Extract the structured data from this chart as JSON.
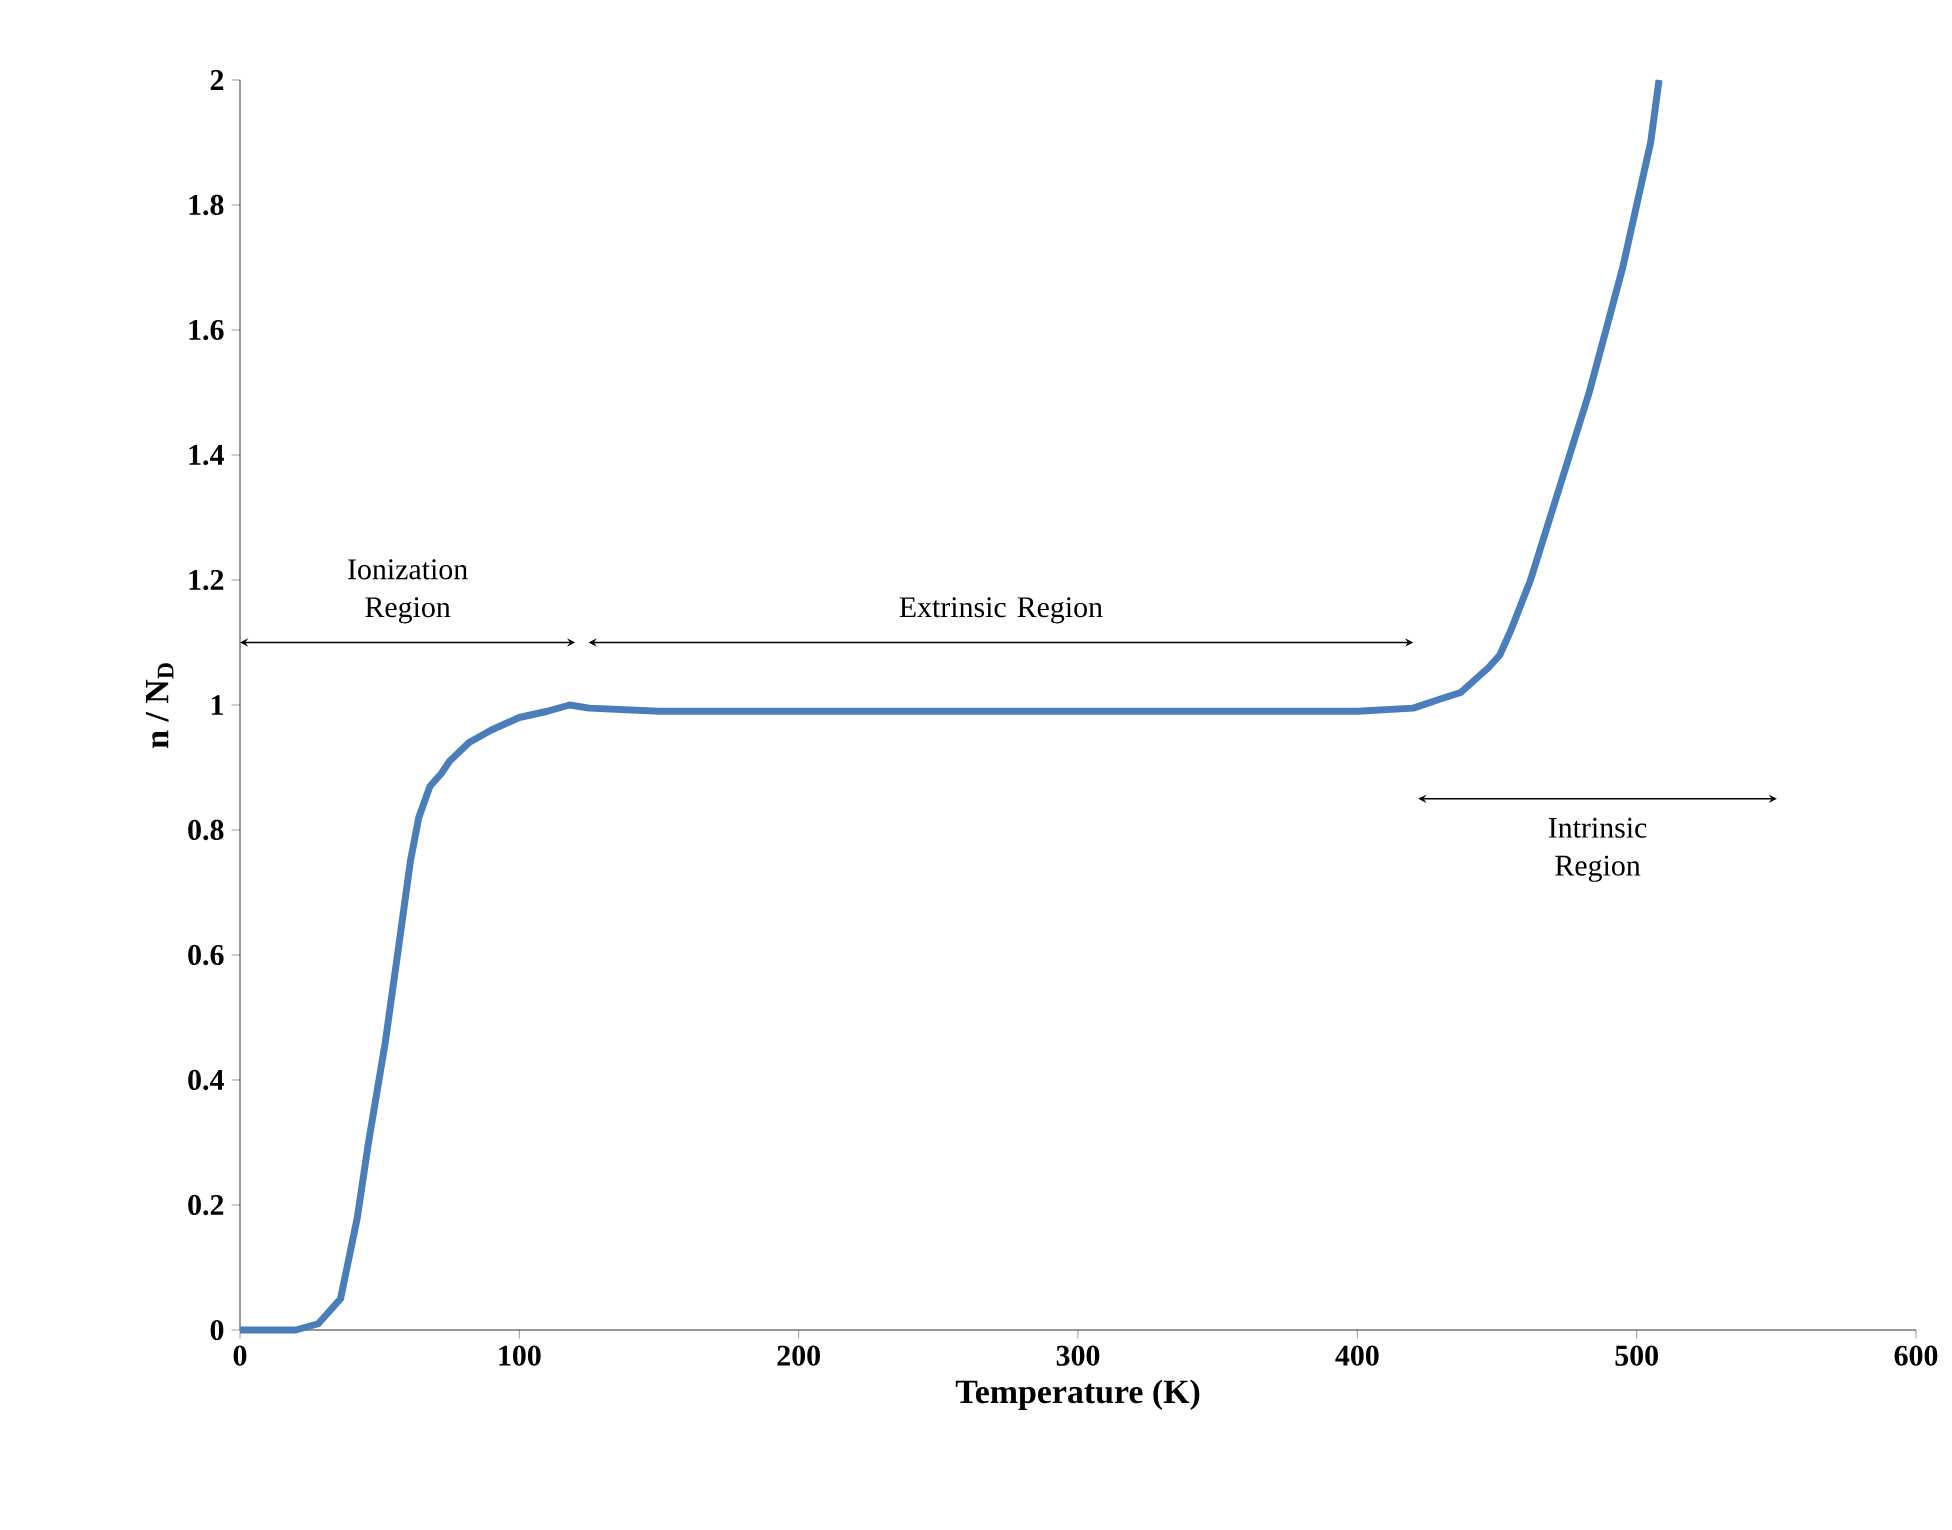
{
  "chart_data": {
    "type": "line",
    "xlabel": "Temperature (K)",
    "ylabel": "n / N$_{D}$",
    "x": [
      0,
      20,
      28,
      36,
      42,
      46,
      52,
      57,
      61,
      64,
      68,
      72,
      75,
      82,
      90,
      100,
      110,
      118,
      125,
      150,
      200,
      250,
      300,
      350,
      400,
      420,
      430,
      437,
      442,
      447,
      451,
      455,
      462,
      469,
      476,
      483,
      489,
      495,
      500,
      505,
      508
    ],
    "values": [
      0,
      0,
      0.01,
      0.05,
      0.18,
      0.3,
      0.46,
      0.62,
      0.75,
      0.82,
      0.87,
      0.89,
      0.91,
      0.94,
      0.96,
      0.98,
      0.99,
      1.0,
      0.995,
      0.99,
      0.99,
      0.99,
      0.99,
      0.99,
      0.99,
      0.995,
      1.01,
      1.02,
      1.04,
      1.06,
      1.08,
      1.12,
      1.2,
      1.3,
      1.4,
      1.5,
      1.6,
      1.7,
      1.8,
      1.9,
      2.0
    ],
    "color": "#4a7ebb",
    "xlim": [
      0,
      600
    ],
    "ylim": [
      0,
      2
    ],
    "xticks": [
      0,
      100,
      200,
      300,
      400,
      500,
      600
    ],
    "yticks": [
      0,
      0.2,
      0.4,
      0.6,
      0.8,
      1,
      1.2,
      1.4,
      1.6,
      1.8,
      2
    ],
    "annotations": [
      "Ionization Region",
      "Extrinsic Region",
      "Intrinsic Region"
    ],
    "marker": "none",
    "line_style": "solid"
  }
}
